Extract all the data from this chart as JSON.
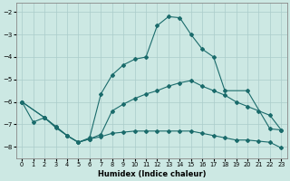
{
  "xlabel": "Humidex (Indice chaleur)",
  "bg_color": "#cce8e3",
  "grid_color": "#aaccca",
  "line_color": "#1a6b6b",
  "xlim": [
    -0.5,
    23.5
  ],
  "ylim": [
    -8.5,
    -1.6
  ],
  "yticks": [
    -8,
    -7,
    -6,
    -5,
    -4,
    -3,
    -2
  ],
  "xticks": [
    0,
    1,
    2,
    3,
    4,
    5,
    6,
    7,
    8,
    9,
    10,
    11,
    12,
    13,
    14,
    15,
    16,
    17,
    18,
    19,
    20,
    21,
    22,
    23
  ],
  "line1_x": [
    0,
    1,
    2,
    3,
    4,
    5,
    6,
    7,
    8,
    9,
    10,
    11,
    12,
    13,
    14,
    15,
    16,
    17,
    18,
    20,
    22,
    23
  ],
  "line1_y": [
    -6.0,
    -6.9,
    -6.7,
    -7.15,
    -7.5,
    -7.8,
    -7.6,
    -5.65,
    -4.8,
    -4.35,
    -4.1,
    -4.0,
    -2.6,
    -2.2,
    -2.25,
    -3.0,
    -3.65,
    -4.0,
    -5.5,
    -5.5,
    -7.2,
    -7.25
  ],
  "line2_x": [
    0,
    2,
    3,
    4,
    5,
    6,
    7,
    8,
    9,
    10,
    11,
    12,
    13,
    14,
    15,
    16,
    17,
    18,
    19,
    20,
    21,
    22,
    23
  ],
  "line2_y": [
    -6.0,
    -6.7,
    -7.1,
    -7.5,
    -7.8,
    -7.65,
    -7.45,
    -6.4,
    -6.1,
    -5.85,
    -5.65,
    -5.5,
    -5.3,
    -5.15,
    -5.05,
    -5.3,
    -5.5,
    -5.7,
    -6.0,
    -6.2,
    -6.4,
    -6.6,
    -7.25
  ],
  "line3_x": [
    0,
    2,
    3,
    4,
    5,
    6,
    7,
    8,
    9,
    10,
    11,
    12,
    13,
    14,
    15,
    16,
    17,
    18,
    19,
    20,
    21,
    22,
    23
  ],
  "line3_y": [
    -6.0,
    -6.7,
    -7.1,
    -7.5,
    -7.8,
    -7.65,
    -7.55,
    -7.4,
    -7.35,
    -7.3,
    -7.3,
    -7.3,
    -7.3,
    -7.3,
    -7.3,
    -7.4,
    -7.5,
    -7.6,
    -7.7,
    -7.7,
    -7.75,
    -7.8,
    -8.05
  ],
  "markersize": 2.0
}
